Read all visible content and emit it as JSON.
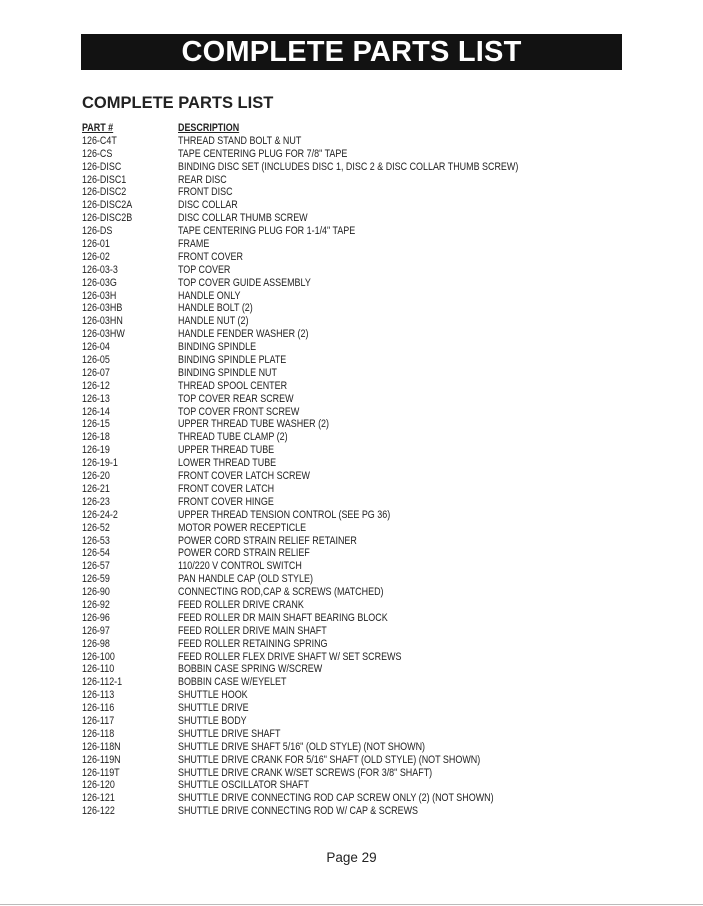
{
  "banner_title": "COMPLETE PARTS LIST",
  "section_title": "COMPLETE PARTS LIST",
  "table": {
    "headers": [
      "PART #",
      "DESCRIPTION"
    ],
    "rows": [
      [
        "126-C4T",
        "THREAD STAND BOLT & NUT"
      ],
      [
        "126-CS",
        "TAPE CENTERING PLUG FOR 7/8\" TAPE"
      ],
      [
        "126-DISC",
        "BINDING DISC SET (INCLUDES DISC 1, DISC 2 & DISC COLLAR THUMB SCREW)"
      ],
      [
        "126-DISC1",
        "REAR DISC"
      ],
      [
        "126-DISC2",
        "FRONT DISC"
      ],
      [
        "126-DISC2A",
        "DISC COLLAR"
      ],
      [
        "126-DISC2B",
        "DISC COLLAR THUMB SCREW"
      ],
      [
        "126-DS",
        "TAPE CENTERING PLUG FOR 1-1/4\" TAPE"
      ],
      [
        "126-01",
        "FRAME"
      ],
      [
        "126-02",
        "FRONT COVER"
      ],
      [
        "126-03-3",
        "TOP COVER"
      ],
      [
        "126-03G",
        "TOP COVER GUIDE ASSEMBLY"
      ],
      [
        "126-03H",
        "HANDLE ONLY"
      ],
      [
        "126-03HB",
        "HANDLE BOLT (2)"
      ],
      [
        "126-03HN",
        "HANDLE NUT (2)"
      ],
      [
        "126-03HW",
        "HANDLE FENDER WASHER (2)"
      ],
      [
        "126-04",
        "BINDING SPINDLE"
      ],
      [
        "126-05",
        "BINDING SPINDLE PLATE"
      ],
      [
        "126-07",
        "BINDING SPINDLE NUT"
      ],
      [
        "126-12",
        "THREAD SPOOL CENTER"
      ],
      [
        "126-13",
        "TOP COVER REAR SCREW"
      ],
      [
        "126-14",
        "TOP COVER FRONT SCREW"
      ],
      [
        "126-15",
        "UPPER THREAD TUBE WASHER (2)"
      ],
      [
        "126-18",
        "THREAD TUBE CLAMP (2)"
      ],
      [
        "126-19",
        "UPPER THREAD TUBE"
      ],
      [
        "126-19-1",
        "LOWER THREAD TUBE"
      ],
      [
        "126-20",
        "FRONT COVER LATCH SCREW"
      ],
      [
        "126-21",
        "FRONT COVER LATCH"
      ],
      [
        "126-23",
        "FRONT COVER HINGE"
      ],
      [
        "126-24-2",
        "UPPER THREAD TENSION CONTROL (SEE PG 36)"
      ],
      [
        "126-52",
        "MOTOR POWER RECEPTICLE"
      ],
      [
        "126-53",
        "POWER CORD STRAIN RELIEF RETAINER"
      ],
      [
        "126-54",
        "POWER CORD STRAIN RELIEF"
      ],
      [
        "126-57",
        "110/220 V CONTROL SWITCH"
      ],
      [
        "126-59",
        "PAN HANDLE CAP (OLD STYLE)"
      ],
      [
        "126-90",
        "CONNECTING ROD,CAP & SCREWS (MATCHED)"
      ],
      [
        "126-92",
        "FEED ROLLER DRIVE CRANK"
      ],
      [
        "126-96",
        "FEED ROLLER DR MAIN SHAFT BEARING BLOCK"
      ],
      [
        "126-97",
        "FEED ROLLER DRIVE MAIN SHAFT"
      ],
      [
        "126-98",
        "FEED ROLLER RETAINING SPRING"
      ],
      [
        "126-100",
        "FEED ROLLER FLEX DRIVE SHAFT W/ SET SCREWS"
      ],
      [
        "126-110",
        "BOBBIN CASE SPRING W/SCREW"
      ],
      [
        "126-112-1",
        "BOBBIN CASE W/EYELET"
      ],
      [
        "126-113",
        "SHUTTLE HOOK"
      ],
      [
        "126-116",
        "SHUTTLE DRIVE"
      ],
      [
        "126-117",
        "SHUTTLE BODY"
      ],
      [
        "126-118",
        "SHUTTLE DRIVE SHAFT"
      ],
      [
        "126-118N",
        "SHUTTLE DRIVE SHAFT 5/16\" (OLD STYLE) (NOT SHOWN)"
      ],
      [
        "126-119N",
        "SHUTTLE DRIVE CRANK FOR 5/16\" SHAFT (OLD STYLE) (NOT SHOWN)"
      ],
      [
        "126-119T",
        "SHUTTLE DRIVE CRANK W/SET SCREWS (FOR 3/8\" SHAFT)"
      ],
      [
        "126-120",
        "SHUTTLE OSCILLATOR SHAFT"
      ],
      [
        "126-121",
        "SHUTTLE DRIVE CONNECTING ROD CAP SCREW ONLY (2) (NOT SHOWN)"
      ],
      [
        "126-122",
        "SHUTTLE DRIVE CONNECTING ROD W/ CAP & SCREWS"
      ]
    ]
  },
  "footer": {
    "page_label": "Page 29"
  }
}
